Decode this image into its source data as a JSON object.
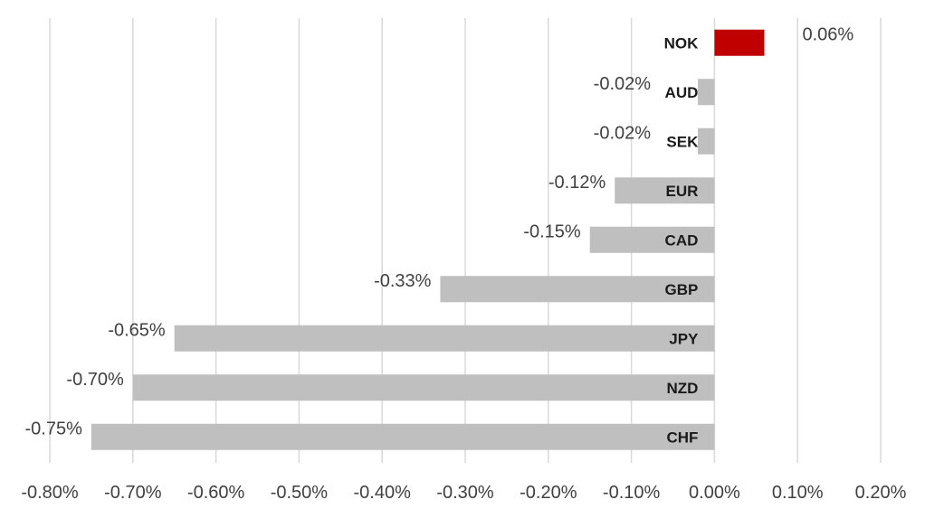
{
  "chart_data": {
    "type": "bar",
    "orientation": "horizontal",
    "title": "",
    "xlabel": "",
    "ylabel": "",
    "categories": [
      "NOK",
      "AUD",
      "SEK",
      "EUR",
      "CAD",
      "GBP",
      "JPY",
      "NZD",
      "CHF"
    ],
    "values": [
      0.06,
      -0.02,
      -0.02,
      -0.12,
      -0.15,
      -0.33,
      -0.65,
      -0.7,
      -0.75
    ],
    "data_labels": [
      "0.06%",
      "-0.02%",
      "-0.02%",
      "-0.12%",
      "-0.15%",
      "-0.33%",
      "-0.65%",
      "-0.70%",
      "-0.75%"
    ],
    "xlim": [
      -0.8,
      0.2
    ],
    "x_ticks": [
      -0.8,
      -0.7,
      -0.6,
      -0.5,
      -0.4,
      -0.3,
      -0.2,
      -0.1,
      0.0,
      0.1,
      0.2
    ],
    "x_tick_labels": [
      "-0.80%",
      "-0.70%",
      "-0.60%",
      "-0.50%",
      "-0.40%",
      "-0.30%",
      "-0.20%",
      "-0.10%",
      "0.00%",
      "0.10%",
      "0.20%"
    ],
    "grid": "vertical",
    "legend": "none",
    "colors": {
      "positive": "#c00000",
      "negative": "#bfbfbf",
      "grid": "#d9d9d9"
    }
  }
}
